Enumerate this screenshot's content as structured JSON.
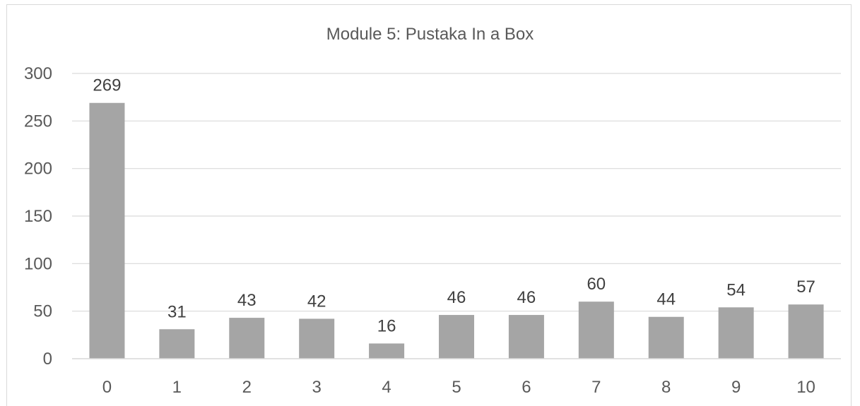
{
  "chart_data": {
    "type": "bar",
    "title": "Module 5: Pustaka In a Box",
    "xlabel": "",
    "ylabel": "",
    "categories": [
      "0",
      "1",
      "2",
      "3",
      "4",
      "5",
      "6",
      "7",
      "8",
      "9",
      "10"
    ],
    "values": [
      269,
      31,
      43,
      42,
      16,
      46,
      46,
      60,
      44,
      54,
      57
    ],
    "data_labels": [
      "269",
      "31",
      "43",
      "42",
      "16",
      "46",
      "46",
      "60",
      "44",
      "54",
      "57"
    ],
    "ylim": [
      0,
      300
    ],
    "yticks": [
      0,
      50,
      100,
      150,
      200,
      250,
      300
    ],
    "ytick_labels": [
      "0",
      "50",
      "100",
      "150",
      "200",
      "250",
      "300"
    ],
    "grid": true,
    "legend": "none",
    "bar_color": "#a5a5a5",
    "gridline_color": "#d9d9d9",
    "text_color": "#595959"
  }
}
